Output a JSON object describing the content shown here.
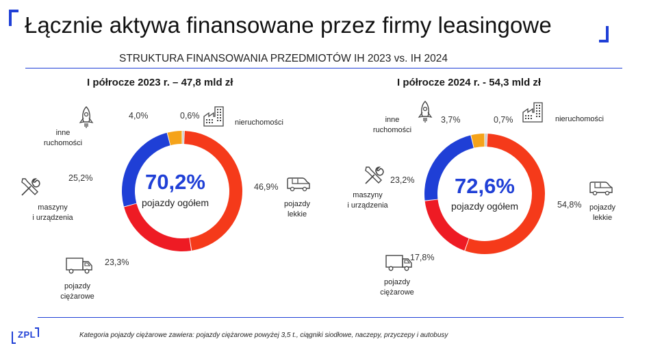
{
  "header": {
    "title": "Łącznie aktywa finansowane przez firmy leasingowe",
    "subtitle": "STRUKTURA FINANSOWANIA PRZEDMIOTÓW IH 2023 vs. IH 2024"
  },
  "colors": {
    "accent": "#1f3fd6",
    "pojazdy_lekkie": "#f53a1a",
    "pojazdy_ciezarowe": "#ee1b24",
    "maszyny": "#1f3fd6",
    "inne_ruchomosci": "#f5a31a",
    "nieruchomosci": "#c8c8c8"
  },
  "labels": {
    "nieruchomosci": "nieruchomości",
    "pojazdy_lekkie_1": "pojazdy",
    "pojazdy_lekkie_2": "lekkie",
    "pojazdy_ciezarowe_1": "pojazdy",
    "pojazdy_ciezarowe_2": "ciężarowe",
    "maszyny_1": "maszyny",
    "maszyny_2": "i urządzenia",
    "inne_1": "inne",
    "inne_2": "ruchomości"
  },
  "icons": {
    "inne": "rocket-icon",
    "nieruchomosci": "factory-icon",
    "lekkie": "van-icon",
    "ciezarowe": "truck-icon",
    "maszyny": "tools-icon"
  },
  "chart_data": [
    {
      "type": "pie",
      "title": "I półrocze 2023 r. – 47,8 mld zł",
      "center_value": "70,2%",
      "center_label": "pojazdy ogółem",
      "categories": [
        "pojazdy lekkie",
        "pojazdy ciężarowe",
        "maszyny i urządzenia",
        "inne ruchomości",
        "nieruchomości"
      ],
      "values": [
        46.9,
        23.3,
        25.2,
        4.0,
        0.6
      ],
      "value_labels": [
        "46,9%",
        "23,3%",
        "25,2%",
        "4,0%",
        "0,6%"
      ]
    },
    {
      "type": "pie",
      "title": "I półrocze 2024 r. - 54,3 mld zł",
      "center_value": "72,6%",
      "center_label": "pojazdy ogółem",
      "categories": [
        "pojazdy lekkie",
        "pojazdy ciężarowe",
        "maszyny i urządzenia",
        "inne ruchomości",
        "nieruchomości"
      ],
      "values": [
        54.8,
        17.8,
        23.2,
        3.7,
        0.7
      ],
      "value_labels": [
        "54,8%",
        "17,8%",
        "23,2%",
        "3,7%",
        "0,7%"
      ]
    }
  ],
  "footer": {
    "note": "Kategoria pojazdy ciężarowe zawiera: pojazdy ciężarowe powyżej 3,5 t., ciągniki siodłowe, naczepy, przyczepy i autobusy",
    "logo": "ZPL"
  }
}
